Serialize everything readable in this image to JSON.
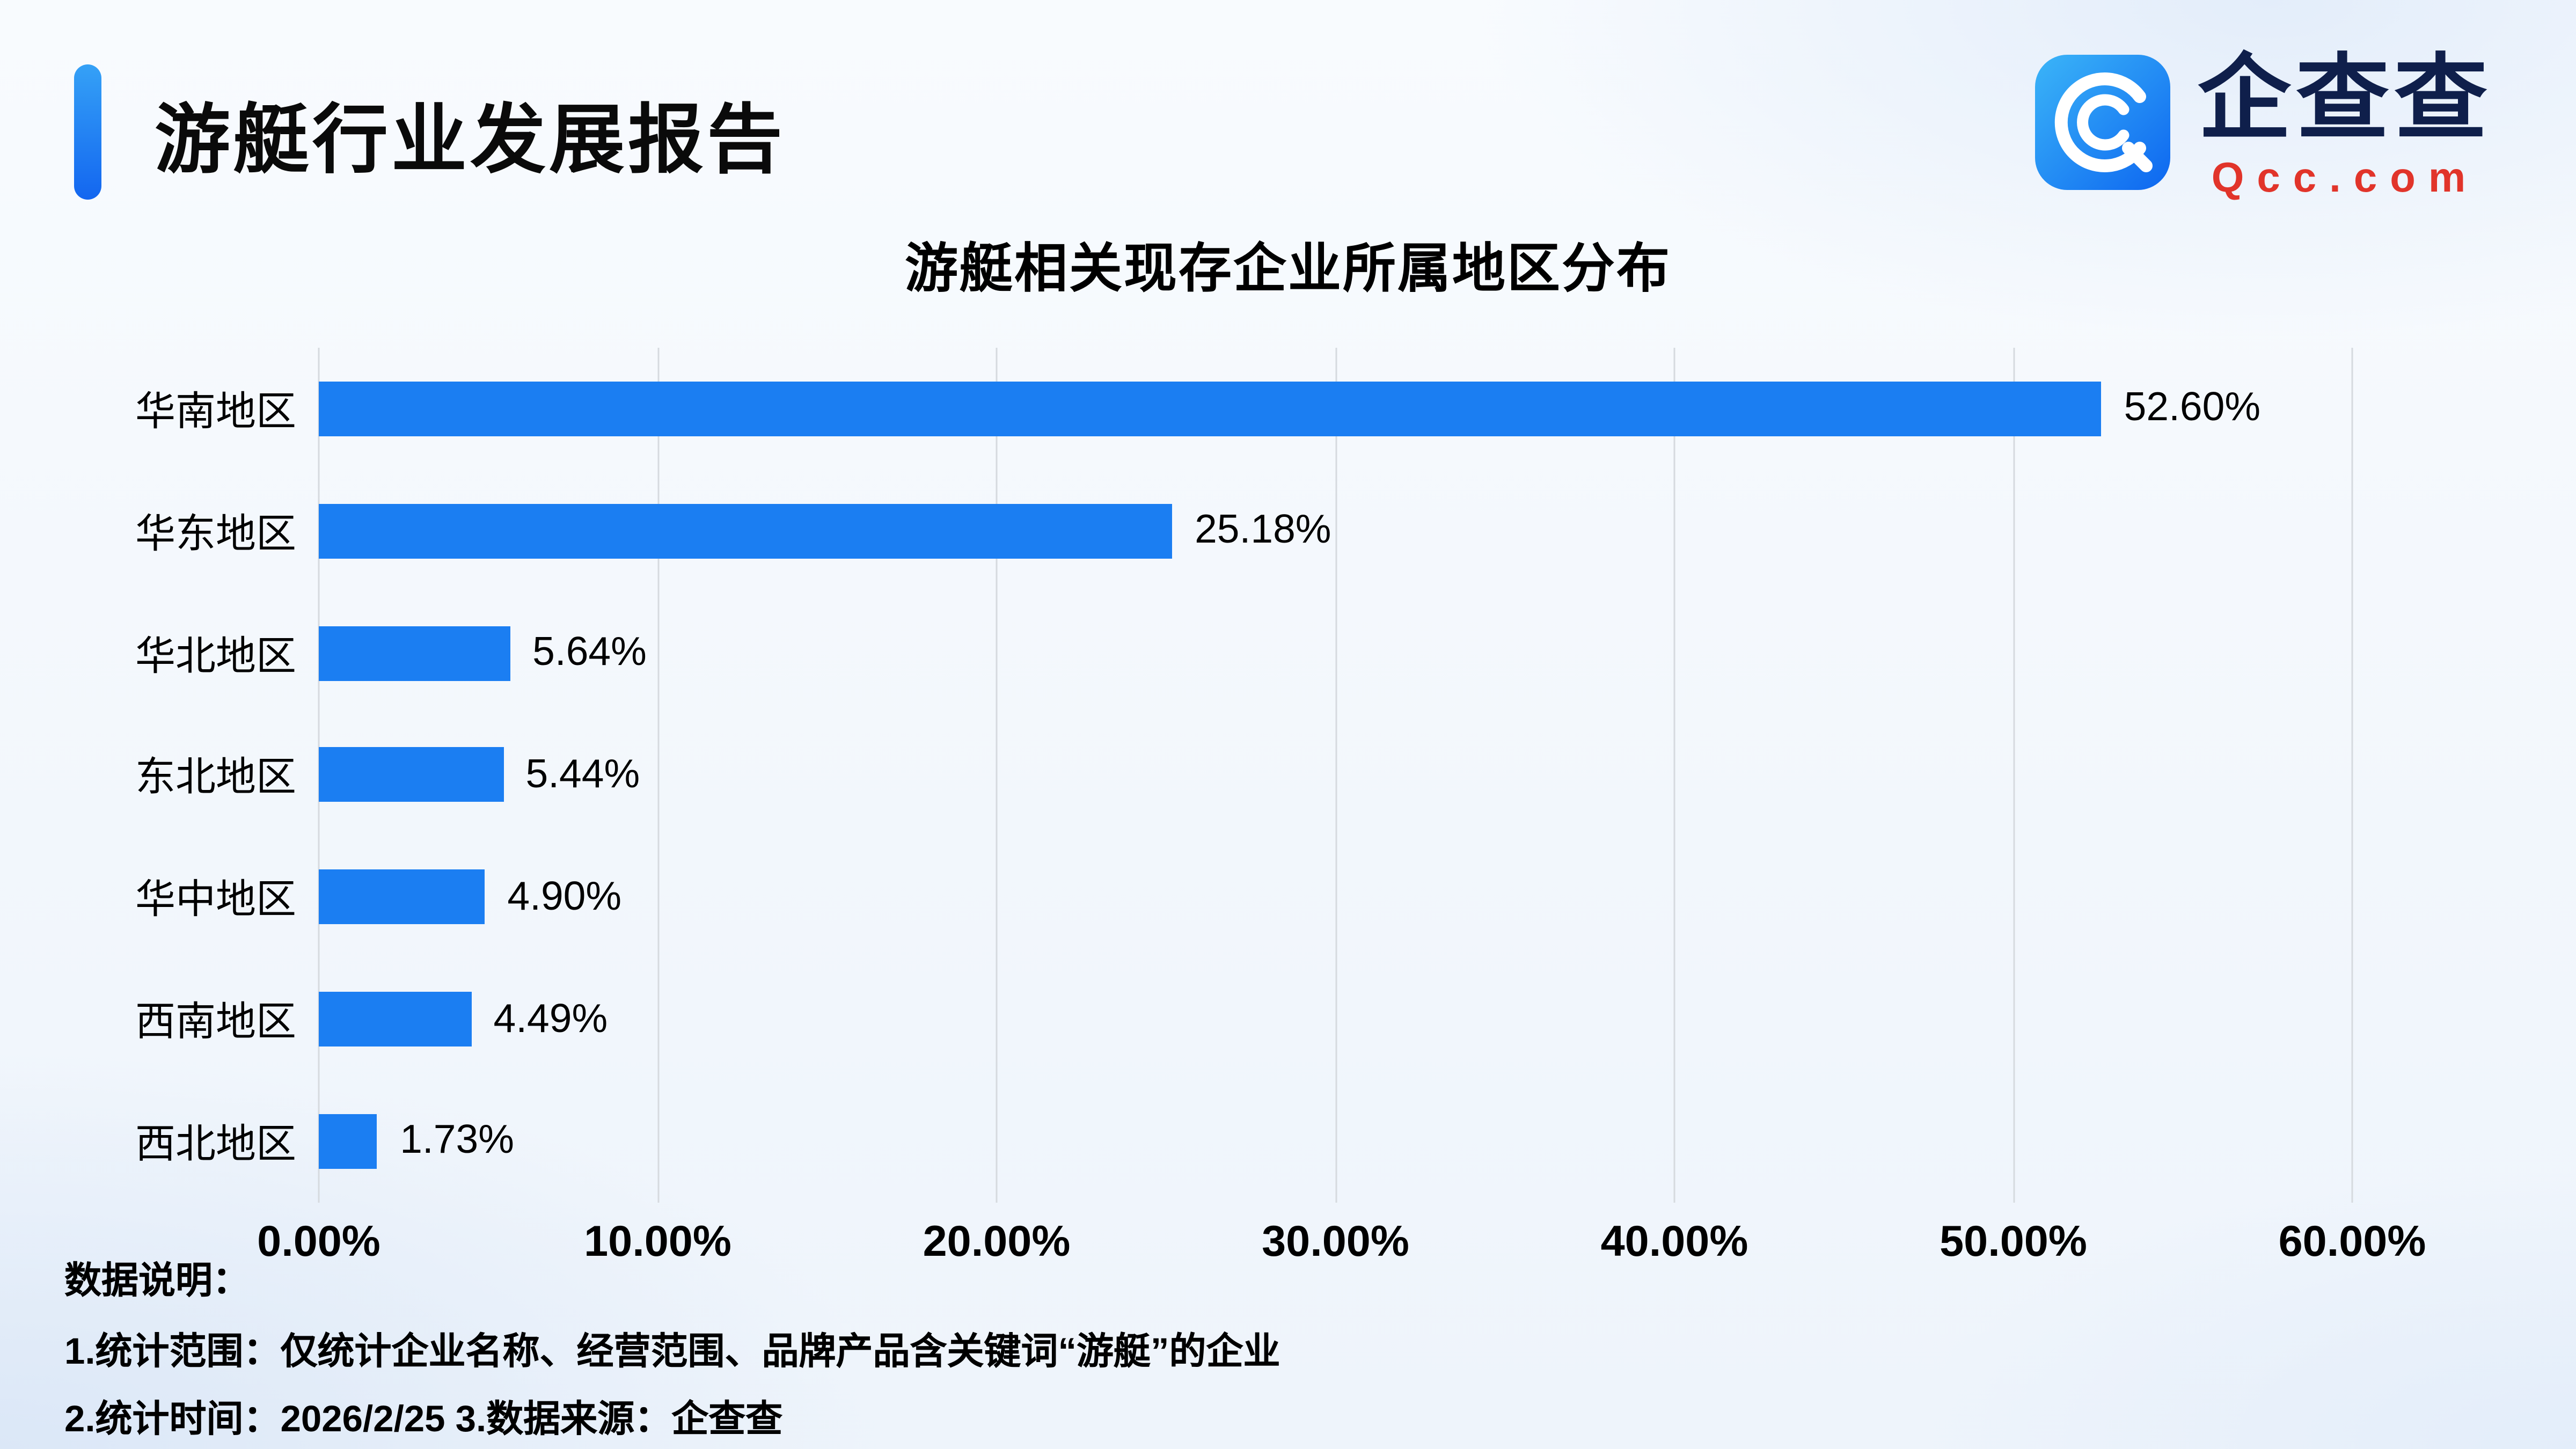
{
  "header": {
    "report_title": "游艇行业发展报告",
    "logo": {
      "icon": "qcc-logo-icon",
      "brand_text": "企查查",
      "brand_domain": "Qcc.com"
    }
  },
  "chart_data": {
    "type": "bar",
    "orientation": "horizontal",
    "title": "游艇相关现存企业所属地区分布",
    "categories": [
      "华南地区",
      "华东地区",
      "华北地区",
      "东北地区",
      "华中地区",
      "西南地区",
      "西北地区"
    ],
    "values": [
      52.6,
      25.18,
      5.64,
      5.44,
      4.9,
      4.49,
      1.73
    ],
    "value_labels": [
      "52.60%",
      "25.18%",
      "5.64%",
      "5.44%",
      "4.90%",
      "4.49%",
      "1.73%"
    ],
    "x_ticks": [
      "0.00%",
      "10.00%",
      "20.00%",
      "30.00%",
      "40.00%",
      "50.00%",
      "60.00%"
    ],
    "xlim": [
      0,
      60
    ],
    "grid": true,
    "legend": "none",
    "bar_color": "#1b7ef2"
  },
  "footer": {
    "notes_title": "数据说明：",
    "note1": "1.统计范围：仅统计企业名称、经营范围、品牌产品含关键词“游艇”的企业",
    "note2": "2.统计时间：2026/2/25 3.数据来源：企查查"
  },
  "colors": {
    "accent_blue": "#1b7ef2",
    "brand_navy": "#0f1f4b",
    "brand_red": "#e1342a",
    "gridline": "#d6dadf",
    "background": "#eef4fb"
  }
}
